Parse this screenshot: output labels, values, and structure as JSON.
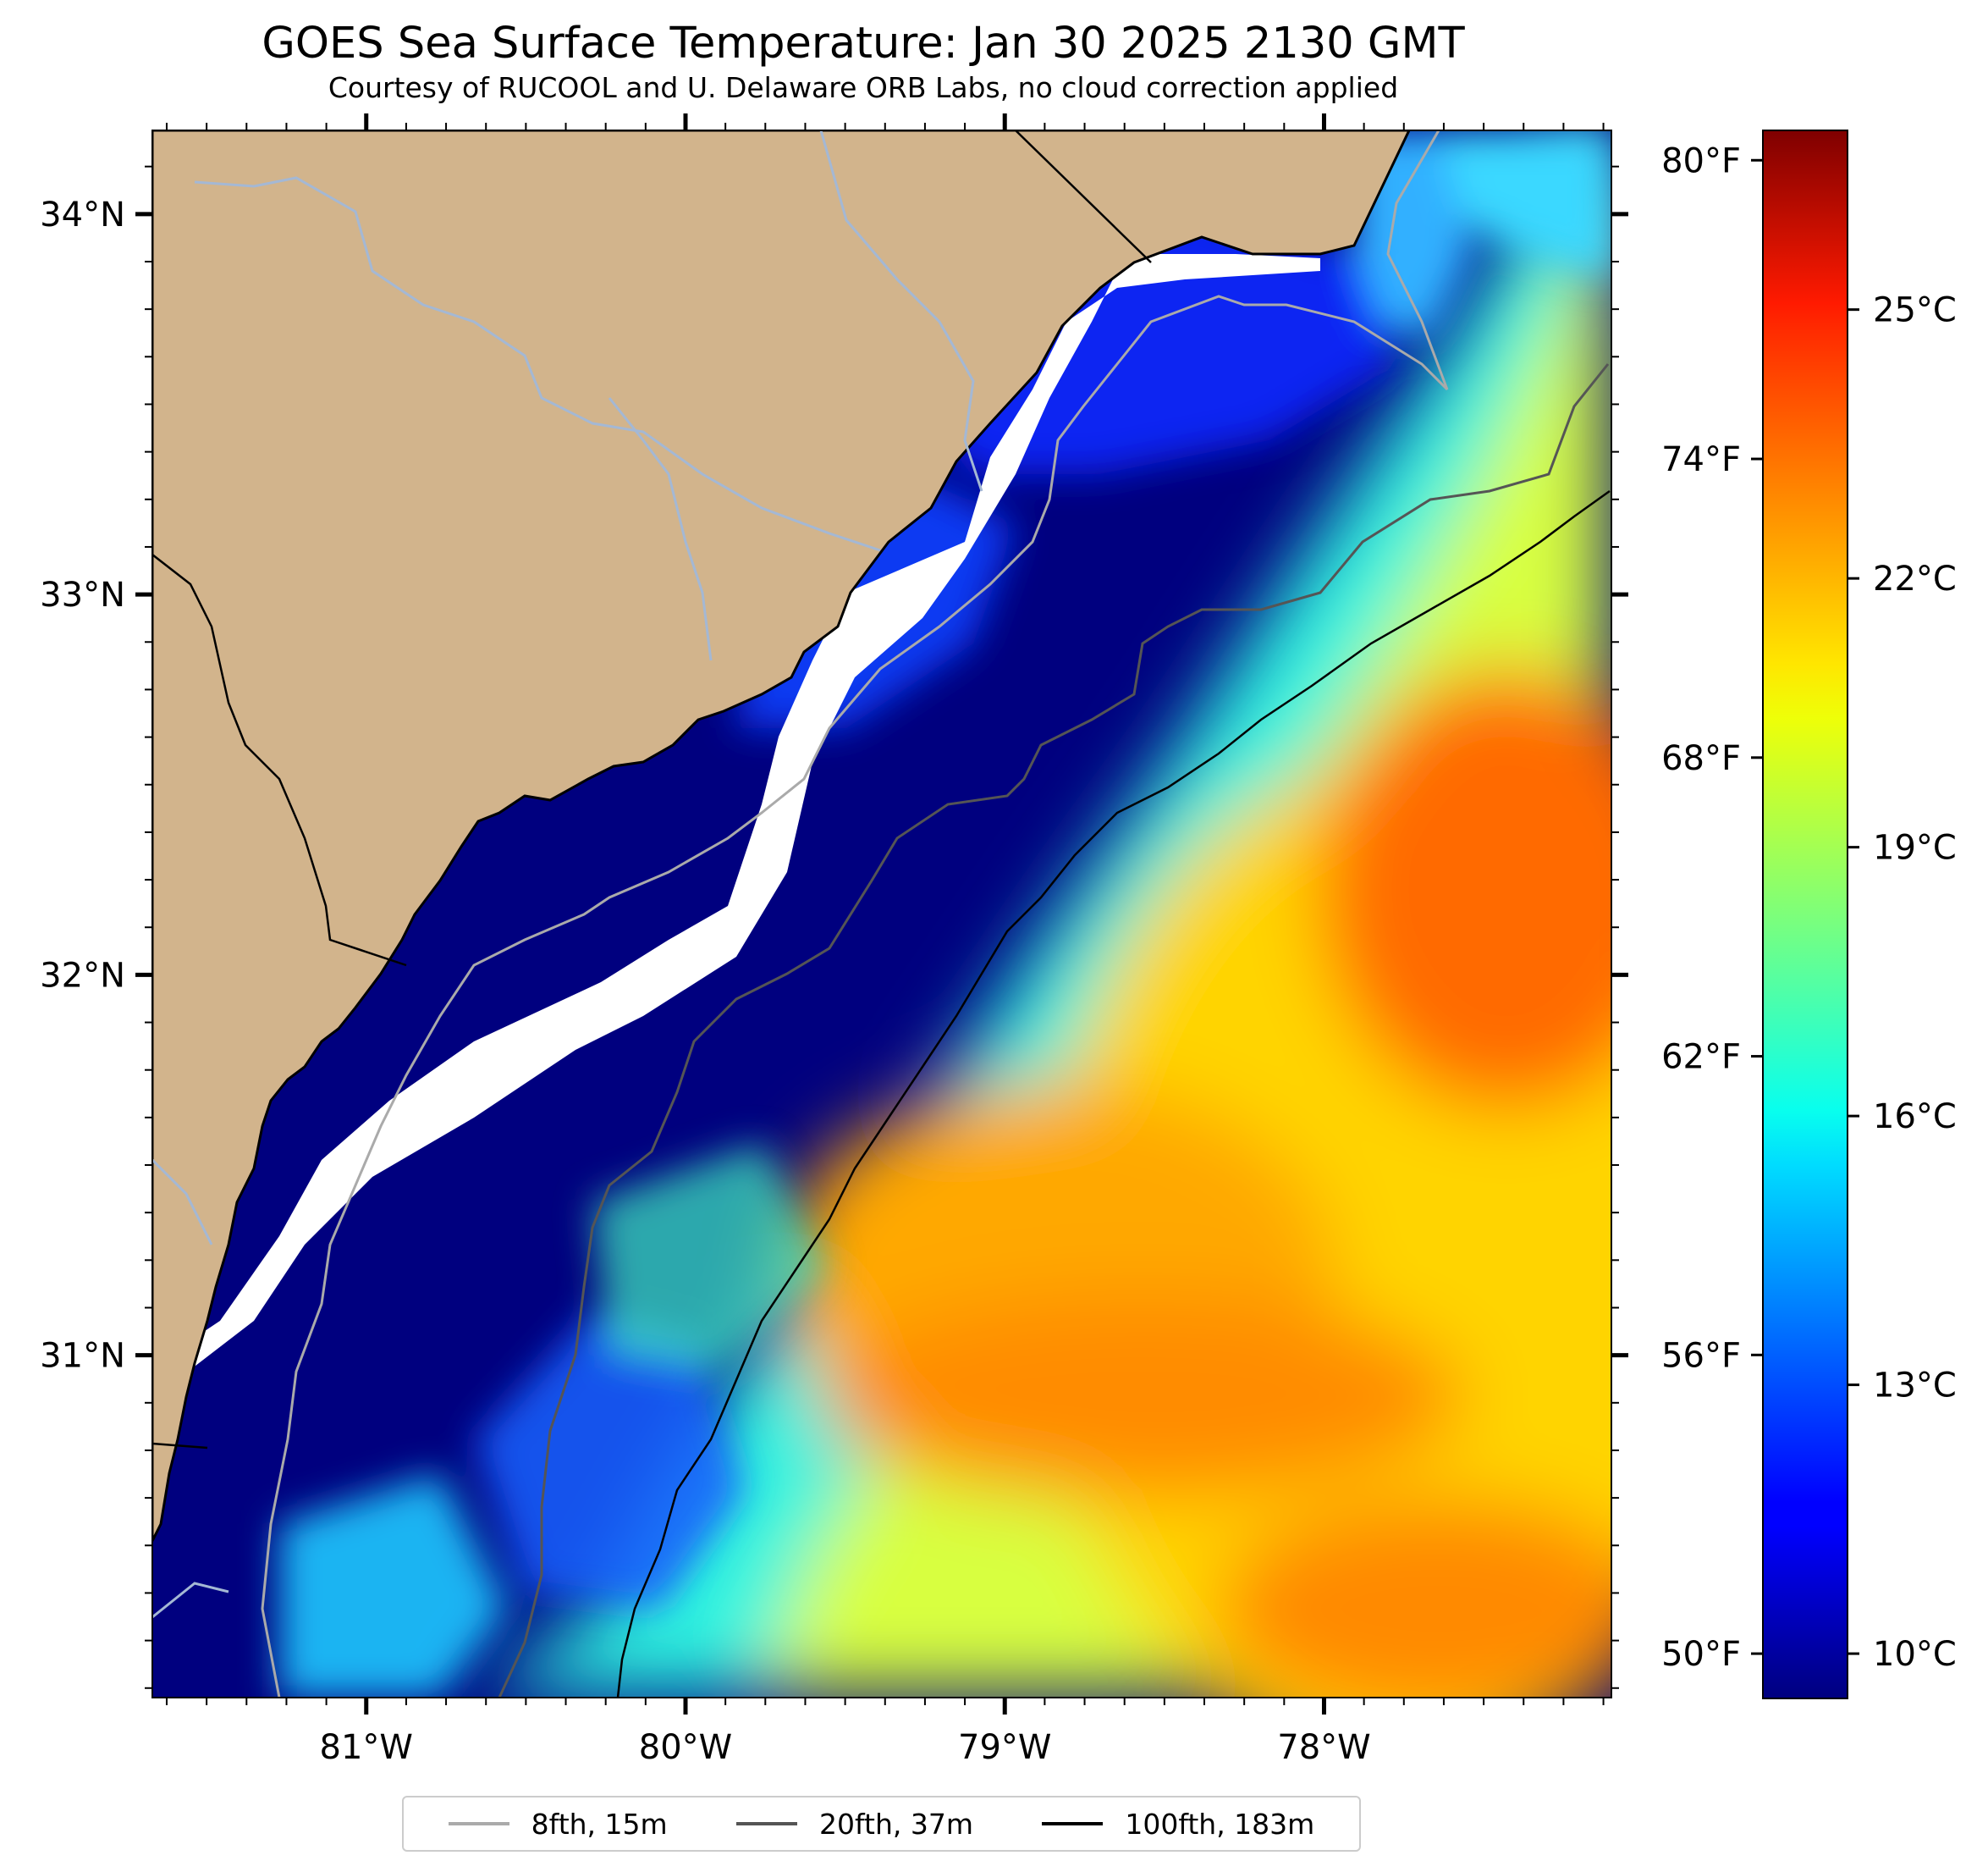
{
  "header": {
    "title": "GOES Sea Surface Temperature: Jan 30 2025 2130 GMT",
    "subtitle": "Courtesy of RUCOOL and U. Delaware ORB Labs, no cloud correction applied"
  },
  "map": {
    "extent": {
      "lon_min": -81.67,
      "lon_max": -77.1,
      "lat_min": 30.1,
      "lat_max": 34.22
    },
    "land_color": "#d2b48c",
    "no_data_color": "#ffffff",
    "river_color": "#a4b8d4",
    "x_ticks": [
      {
        "value": -81,
        "label": "81°W"
      },
      {
        "value": -80,
        "label": "80°W"
      },
      {
        "value": -79,
        "label": "79°W"
      },
      {
        "value": -78,
        "label": "78°W"
      }
    ],
    "y_ticks": [
      {
        "value": 34,
        "label": "34°N"
      },
      {
        "value": 33,
        "label": "33°N"
      },
      {
        "value": 32,
        "label": "32°N"
      },
      {
        "value": 31,
        "label": "31°N"
      }
    ],
    "fahrenheit_ticks": [
      {
        "value": 80,
        "label": "80°F"
      },
      {
        "value": 74,
        "label": "74°F"
      },
      {
        "value": 68,
        "label": "68°F"
      },
      {
        "value": 62,
        "label": "62°F"
      },
      {
        "value": 56,
        "label": "56°F"
      },
      {
        "value": 50,
        "label": "50°F"
      }
    ]
  },
  "colorbar": {
    "colormap": "jet",
    "range_c": [
      9.5,
      27.0
    ],
    "ticks": [
      {
        "value": 25,
        "label": "25°C"
      },
      {
        "value": 22,
        "label": "22°C"
      },
      {
        "value": 19,
        "label": "19°C"
      },
      {
        "value": 16,
        "label": "16°C"
      },
      {
        "value": 13,
        "label": "13°C"
      },
      {
        "value": 10,
        "label": "10°C"
      }
    ]
  },
  "legend": {
    "items": [
      {
        "label": "8fth, 15m",
        "color": "#aaaaaa"
      },
      {
        "label": "20fth, 37m",
        "color": "#555555"
      },
      {
        "label": "100fth, 183m",
        "color": "#000000"
      }
    ]
  }
}
